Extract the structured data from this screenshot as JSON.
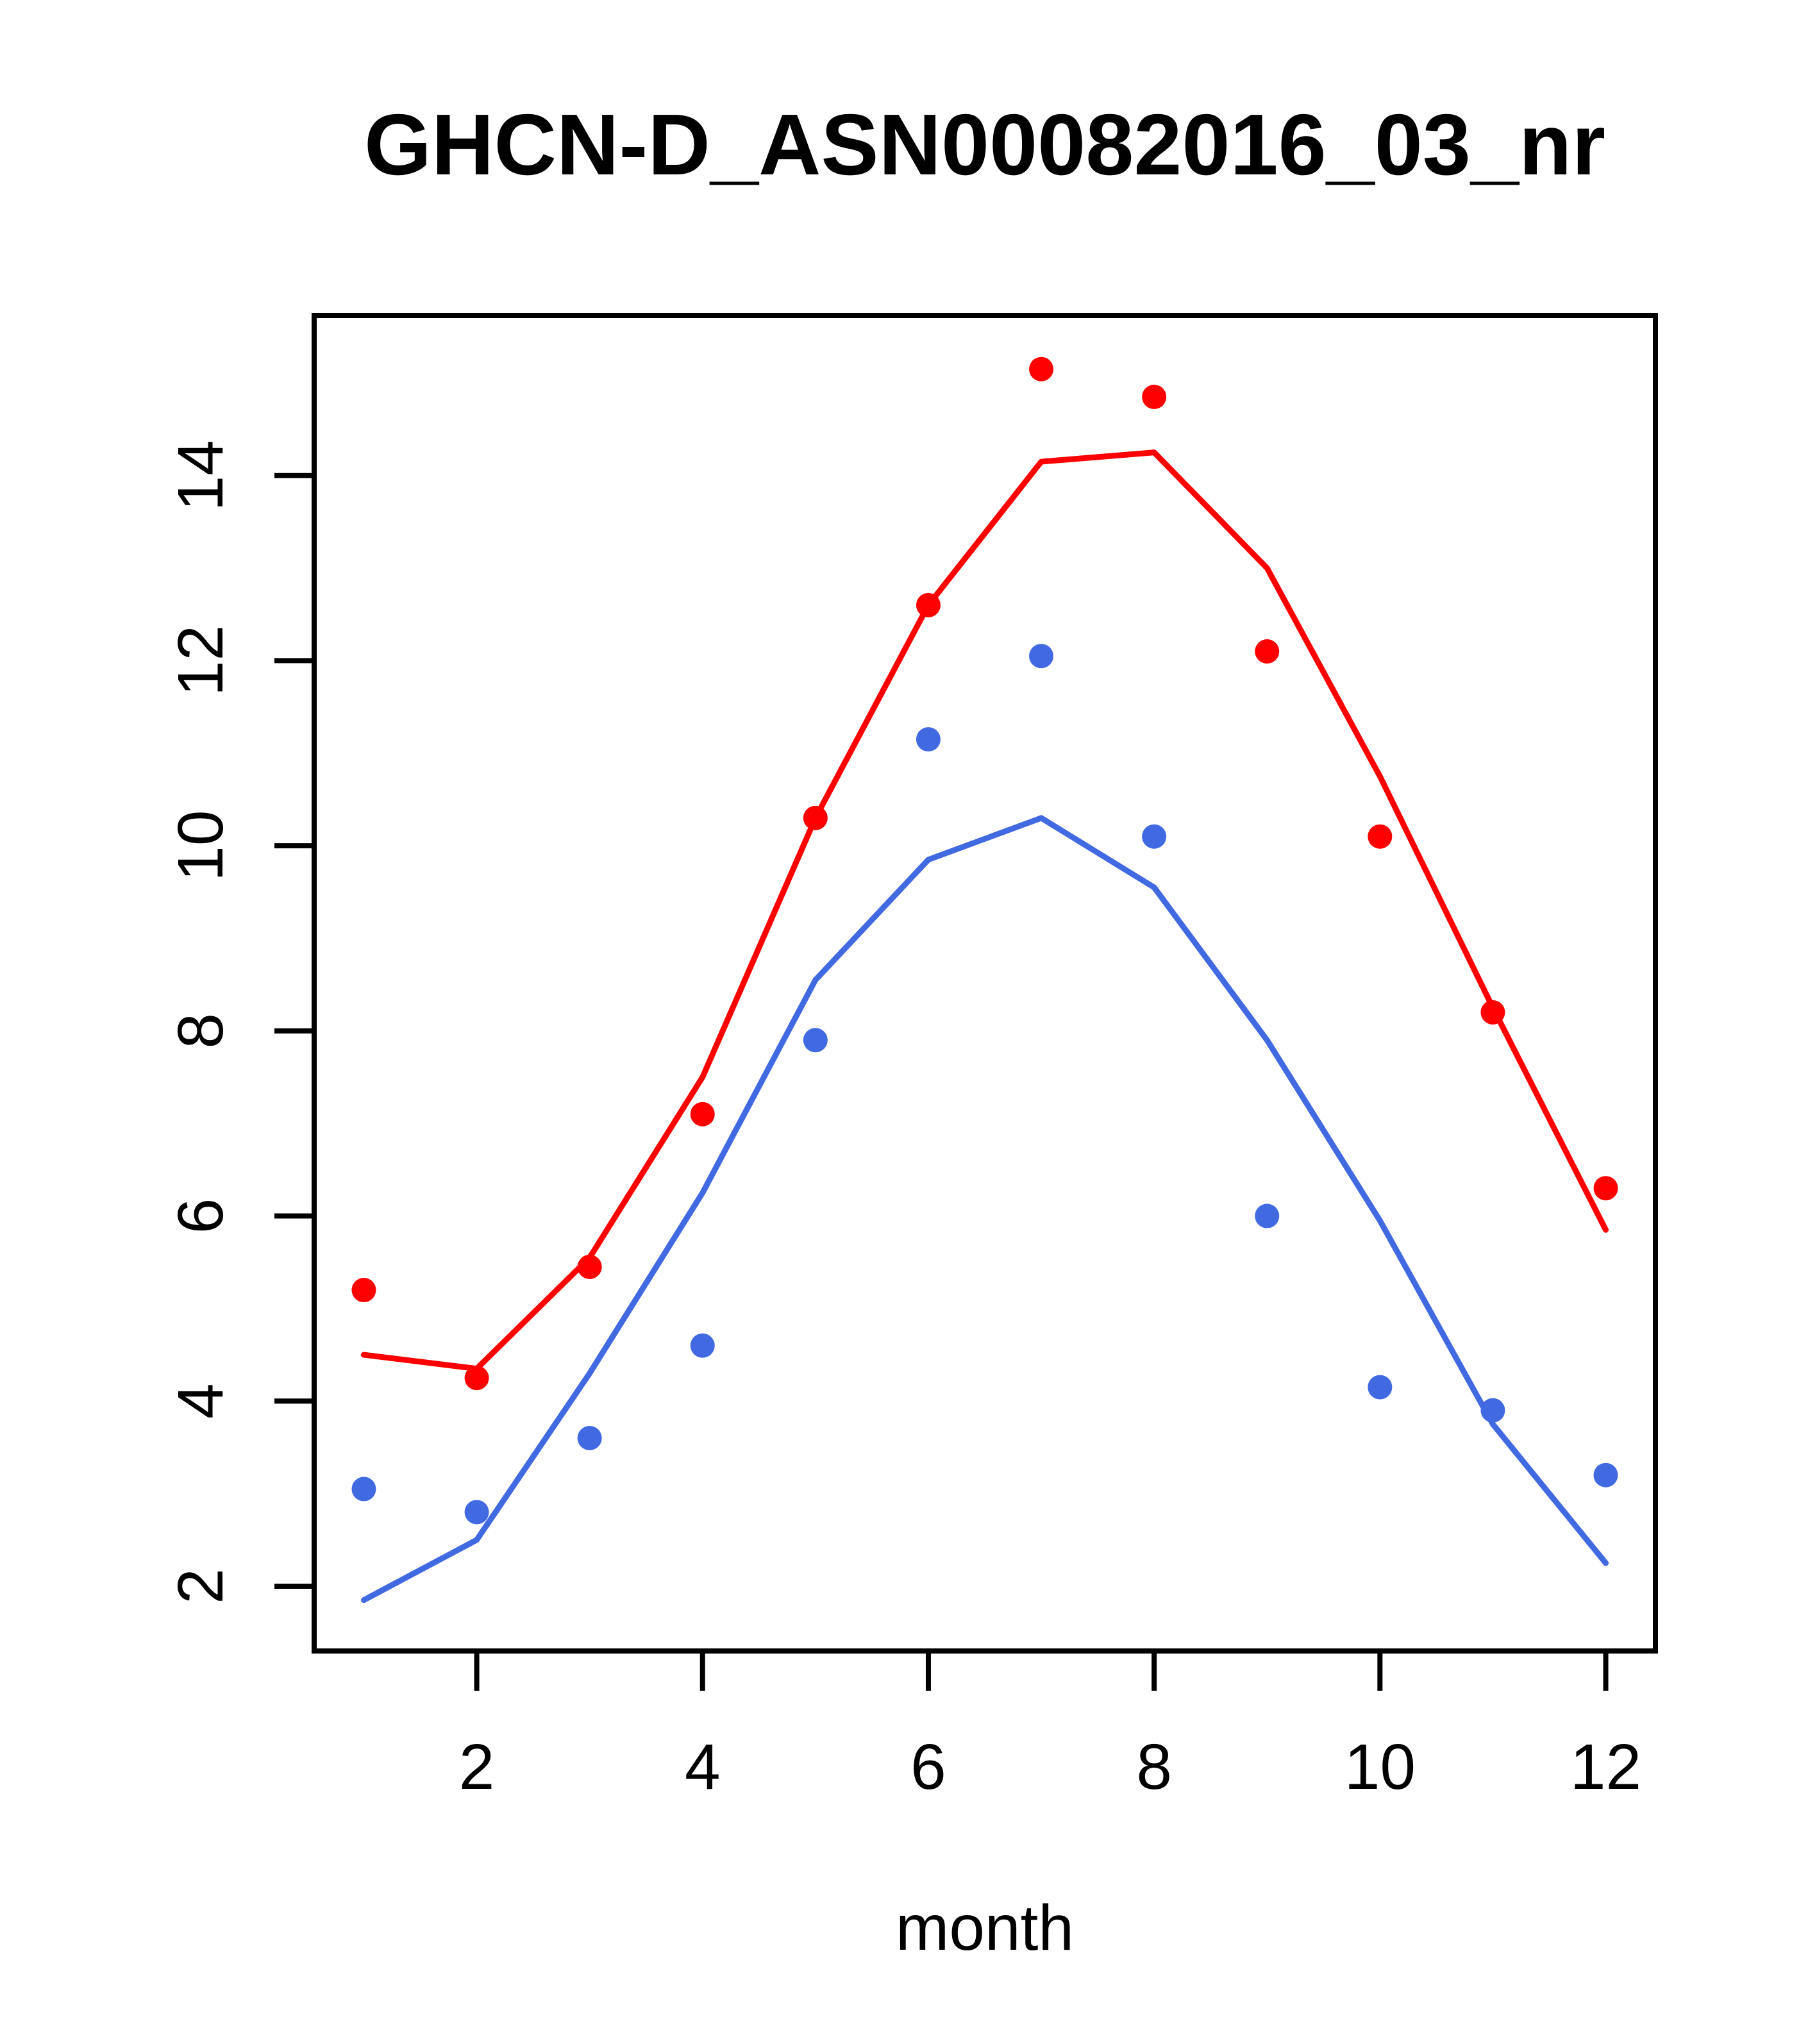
{
  "title": "GHCN-D_ASN00082016_03_nr",
  "x_axis_label": "month",
  "colors": {
    "red": "#FF0000",
    "blue": "#4169E1",
    "axis": "#000000",
    "background": "#FFFFFF"
  },
  "chart_data": {
    "type": "scatter",
    "title": "GHCN-D_ASN00082016_03_nr",
    "xlabel": "month",
    "ylabel": "",
    "x": [
      1,
      2,
      3,
      4,
      5,
      6,
      7,
      8,
      9,
      10,
      11,
      12
    ],
    "series": [
      {
        "name": "red-points",
        "style": "points",
        "color": "#FF0000",
        "values": [
          5.2,
          4.25,
          5.45,
          7.1,
          10.3,
          12.6,
          15.15,
          14.85,
          12.1,
          10.1,
          8.2,
          6.3
        ]
      },
      {
        "name": "red-line",
        "style": "line",
        "color": "#FF0000",
        "values": [
          4.5,
          4.35,
          5.55,
          7.5,
          10.3,
          12.6,
          14.15,
          14.25,
          13.0,
          10.75,
          8.25,
          5.85
        ]
      },
      {
        "name": "blue-points",
        "style": "points",
        "color": "#4169E1",
        "values": [
          3.05,
          2.8,
          3.6,
          4.6,
          7.9,
          11.15,
          12.05,
          10.1,
          6.0,
          4.15,
          3.9,
          3.2
        ]
      },
      {
        "name": "blue-line",
        "style": "line",
        "color": "#4169E1",
        "values": [
          1.85,
          2.5,
          4.3,
          6.25,
          8.55,
          9.85,
          10.3,
          9.55,
          7.9,
          5.95,
          3.75,
          2.25
        ]
      }
    ],
    "x_ticks": [
      2,
      4,
      6,
      8,
      10,
      12
    ],
    "y_ticks": [
      2,
      4,
      6,
      8,
      10,
      12,
      14
    ],
    "xlim": [
      0.56,
      12.44
    ],
    "ylim": [
      1.3,
      15.73
    ],
    "grid": false,
    "legend_position": "none"
  }
}
